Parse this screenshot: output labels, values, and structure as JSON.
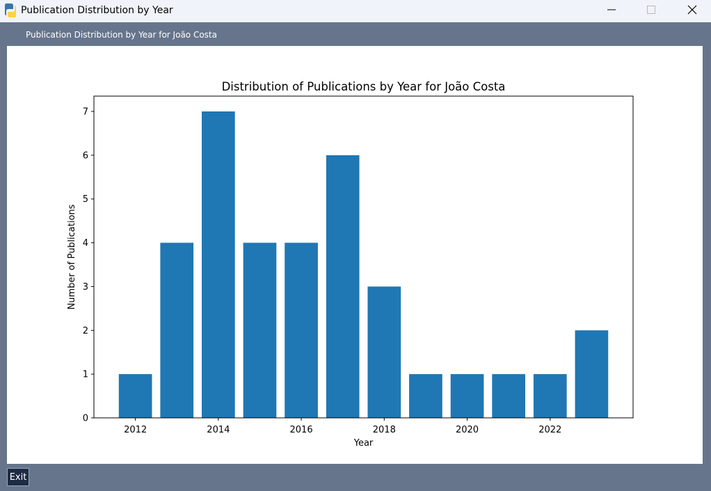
{
  "window": {
    "title": "Publication Distribution by Year",
    "controls": {
      "minimize": "minimize",
      "maximize": "maximize",
      "close": "close"
    }
  },
  "header": {
    "label": "Publication Distribution by Year for João Costa"
  },
  "footer": {
    "exit_label": "Exit"
  },
  "colors": {
    "background": "#66758c",
    "titlebar": "#f0f3f9",
    "bar": "#1f77b4",
    "exit_button": "#1e2b45"
  },
  "chart_data": {
    "type": "bar",
    "title": "Distribution of Publications by Year for João Costa",
    "xlabel": "Year",
    "ylabel": "Number of Publications",
    "x": [
      2012,
      2013,
      2014,
      2015,
      2016,
      2017,
      2018,
      2019,
      2020,
      2021,
      2022,
      2023
    ],
    "values": [
      1,
      4,
      7,
      4,
      4,
      6,
      3,
      1,
      1,
      1,
      1,
      2
    ],
    "xticks": [
      2012,
      2014,
      2016,
      2018,
      2020,
      2022
    ],
    "yticks": [
      0,
      1,
      2,
      3,
      4,
      5,
      6,
      7
    ],
    "ylim": [
      0,
      7.35
    ],
    "xlim": [
      2011.0,
      2024.0
    ],
    "grid": false,
    "legend": "none"
  }
}
